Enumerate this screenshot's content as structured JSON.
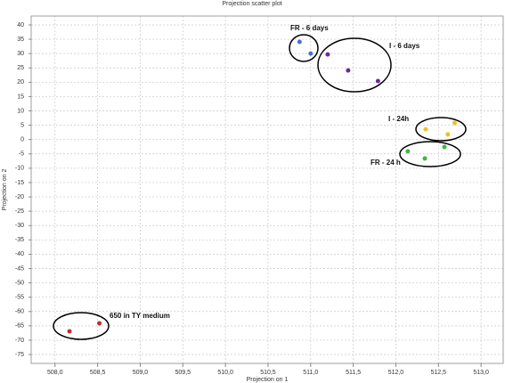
{
  "chart_data": {
    "type": "scatter",
    "title": "Projection scatter plot",
    "x_label": "Projection on 1",
    "y_label": "Projection on 2",
    "xlim": [
      507.72,
      513.26
    ],
    "ylim": [
      -78.1,
      43.1
    ],
    "xticks": [
      {
        "value": 508,
        "label": "508,0"
      },
      {
        "value": 508.5,
        "label": "508,5"
      },
      {
        "value": 509,
        "label": "509,0"
      },
      {
        "value": 509.5,
        "label": "509,5"
      },
      {
        "value": 510,
        "label": "510,0"
      },
      {
        "value": 510.5,
        "label": "510,5"
      },
      {
        "value": 511,
        "label": "511,0"
      },
      {
        "value": 511.5,
        "label": "511,5"
      },
      {
        "value": 512,
        "label": "512,0"
      },
      {
        "value": 512.5,
        "label": "512,5"
      },
      {
        "value": 513,
        "label": "513,0"
      }
    ],
    "yticks": [
      40,
      35,
      30,
      25,
      20,
      15,
      10,
      5,
      0,
      -5,
      -10,
      -15,
      -20,
      -25,
      -30,
      -35,
      -40,
      -45,
      -50,
      -55,
      -60,
      -65,
      -70,
      -75
    ],
    "grid": true,
    "series": [
      {
        "color": "#4a6fd0",
        "x": [
          510.87,
          511.0
        ],
        "y": [
          34.1,
          30.0
        ]
      },
      {
        "color": "#6a2a9a",
        "x": [
          511.2,
          511.44,
          511.79
        ],
        "y": [
          29.7,
          24.1,
          20.4
        ]
      },
      {
        "color": "#f0c020",
        "x": [
          512.35,
          512.61,
          512.69
        ],
        "y": [
          3.6,
          1.8,
          5.8
        ]
      },
      {
        "color": "#3cb840",
        "x": [
          512.14,
          512.34,
          512.57
        ],
        "y": [
          -4.1,
          -6.6,
          -2.6
        ]
      },
      {
        "color": "#c0302a",
        "x": [
          508.17,
          508.52
        ],
        "y": [
          -66.9,
          -64.1
        ]
      }
    ],
    "annotations": [
      "FR - 6 days",
      "I - 6 days",
      "I - 24h",
      "FR - 24 h",
      "650 in TY medium"
    ]
  }
}
